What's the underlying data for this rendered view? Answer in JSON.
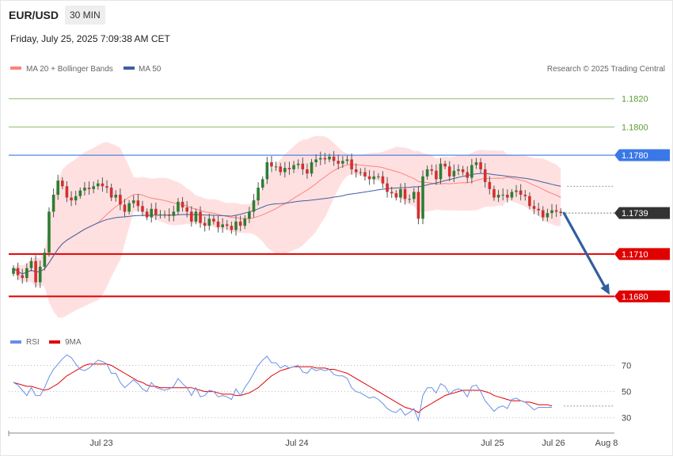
{
  "header": {
    "pair": "EUR/USD",
    "timeframe": "30 MIN",
    "datetime": "Friday, July 25, 2025 7:09:38 AM CET"
  },
  "colors": {
    "ma20": "#ff8080",
    "ma50": "#3f60a0",
    "bands_fill": "#ffe0e0",
    "bull": "#2e7d32",
    "bear": "#d32f2f",
    "support": "#e00000",
    "resistance": "#3a78e8",
    "target_green": "#8cbf6a",
    "arrow": "#2f5f9f",
    "rsi": "#6a8ee8",
    "rsi_ma": "#e00000"
  },
  "chart_data": [
    {
      "type": "candlestick",
      "legend": [
        {
          "name": "MA 20 + Bollinger Bands",
          "color": "#ff8080"
        },
        {
          "name": "MA 50",
          "color": "#3f60a0"
        }
      ],
      "credit": "Research © 2025 Trading Central",
      "ylim": [
        1.166,
        1.1835
      ],
      "x_ticks": [
        "Jul 23",
        "Jul 24",
        "Jul 25",
        "Jul 26",
        "Aug 8"
      ],
      "levels": [
        {
          "value": 1.182,
          "label": "1.1820",
          "role": "target"
        },
        {
          "value": 1.18,
          "label": "1.1800",
          "role": "target"
        },
        {
          "value": 1.178,
          "label": "1.1780",
          "role": "resistance"
        },
        {
          "value": 1.1739,
          "label": "1.1739",
          "role": "last"
        },
        {
          "value": 1.171,
          "label": "1.1710",
          "role": "support"
        },
        {
          "value": 1.168,
          "label": "1.1680",
          "role": "support"
        }
      ],
      "forecast_arrow": {
        "from": 1.1739,
        "to": 1.168
      },
      "close": [
        1.17,
        1.1695,
        1.1693,
        1.17,
        1.1705,
        1.169,
        1.1701,
        1.1711,
        1.174,
        1.1752,
        1.1762,
        1.1758,
        1.175,
        1.1748,
        1.1751,
        1.1755,
        1.1757,
        1.1756,
        1.1758,
        1.176,
        1.1758,
        1.1757,
        1.175,
        1.1752,
        1.1745,
        1.174,
        1.1746,
        1.1748,
        1.1744,
        1.174,
        1.1736,
        1.1742,
        1.1738,
        1.1738,
        1.1738,
        1.1737,
        1.174,
        1.1747,
        1.1743,
        1.174,
        1.1733,
        1.174,
        1.1732,
        1.173,
        1.1735,
        1.1733,
        1.1729,
        1.1731,
        1.173,
        1.1727,
        1.1733,
        1.173,
        1.1735,
        1.174,
        1.1748,
        1.1757,
        1.1763,
        1.1775,
        1.1772,
        1.1772,
        1.1768,
        1.1771,
        1.177,
        1.1773,
        1.1774,
        1.177,
        1.1767,
        1.1775,
        1.1777,
        1.1778,
        1.1777,
        1.1779,
        1.1776,
        1.1774,
        1.1776,
        1.1777,
        1.177,
        1.1768,
        1.1768,
        1.1765,
        1.1763,
        1.1765,
        1.1765,
        1.176,
        1.1754,
        1.1753,
        1.175,
        1.1756,
        1.1749,
        1.1749,
        1.1754,
        1.1735,
        1.1765,
        1.177,
        1.1769,
        1.1763,
        1.1774,
        1.1772,
        1.1765,
        1.1769,
        1.177,
        1.1768,
        1.1764,
        1.1773,
        1.1775,
        1.177,
        1.1761,
        1.1756,
        1.175,
        1.1752,
        1.1752,
        1.175,
        1.1754,
        1.1755,
        1.1752,
        1.1751,
        1.1744,
        1.1742,
        1.1741,
        1.1736,
        1.1739,
        1.1741,
        1.174,
        1.1739
      ],
      "rsi": {
        "name": "RSI",
        "ma_name": "9MA",
        "ticks": [
          70,
          50,
          30
        ],
        "ylim": [
          25,
          80
        ],
        "rsi": [
          57,
          55,
          51,
          47,
          53,
          47,
          47,
          53,
          61,
          67,
          71,
          75,
          78,
          76,
          71,
          67,
          66,
          68,
          71,
          74,
          73,
          71,
          64,
          64,
          57,
          53,
          56,
          59,
          56,
          52,
          50,
          57,
          53,
          52,
          51,
          52,
          54,
          60,
          56,
          53,
          47,
          53,
          46,
          47,
          51,
          50,
          46,
          47,
          46,
          44,
          52,
          47,
          53,
          58,
          64,
          70,
          74,
          77,
          72,
          72,
          68,
          70,
          68,
          69,
          70,
          65,
          64,
          68,
          66,
          67,
          66,
          67,
          63,
          62,
          62,
          60,
          53,
          50,
          49,
          47,
          45,
          46,
          44,
          41,
          37,
          35,
          34,
          37,
          32,
          34,
          37,
          28,
          47,
          53,
          53,
          49,
          56,
          54,
          48,
          51,
          52,
          51,
          46,
          54,
          55,
          50,
          43,
          39,
          35,
          38,
          39,
          37,
          44,
          45,
          43,
          42,
          39,
          36,
          38,
          38,
          38,
          38
        ],
        "rsi_ma": [
          57,
          56,
          55,
          54,
          54,
          53,
          52,
          51,
          52,
          54,
          56,
          59,
          62,
          64,
          66,
          68,
          70,
          71,
          71,
          71,
          71,
          71,
          70,
          68,
          66,
          64,
          62,
          60,
          58,
          57,
          55,
          54,
          54,
          53,
          53,
          53,
          53,
          53,
          53,
          53,
          53,
          52,
          51,
          50,
          50,
          50,
          49,
          48,
          48,
          48,
          47,
          47,
          48,
          49,
          51,
          53,
          56,
          59,
          62,
          64,
          66,
          67,
          68,
          69,
          69,
          69,
          69,
          69,
          68,
          68,
          68,
          67,
          67,
          66,
          65,
          64,
          62,
          60,
          58,
          56,
          54,
          52,
          50,
          48,
          46,
          44,
          42,
          40,
          38,
          37,
          36,
          34,
          37,
          39,
          41,
          43,
          45,
          47,
          48,
          49,
          50,
          51,
          51,
          51,
          51,
          51,
          50,
          49,
          47,
          46,
          45,
          44,
          43,
          43,
          43,
          42,
          42,
          41,
          40,
          40,
          40,
          39
        ]
      }
    }
  ]
}
